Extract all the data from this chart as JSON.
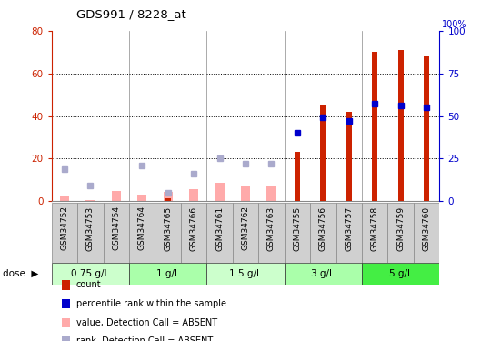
{
  "title": "GDS991 / 8228_at",
  "samples": [
    "GSM34752",
    "GSM34753",
    "GSM34754",
    "GSM34764",
    "GSM34765",
    "GSM34766",
    "GSM34761",
    "GSM34762",
    "GSM34763",
    "GSM34755",
    "GSM34756",
    "GSM34757",
    "GSM34758",
    "GSM34759",
    "GSM34760"
  ],
  "doses": [
    {
      "label": "0.75 g/L",
      "start": 0,
      "end": 3
    },
    {
      "label": "1 g/L",
      "start": 3,
      "end": 6
    },
    {
      "label": "1.5 g/L",
      "start": 6,
      "end": 9
    },
    {
      "label": "3 g/L",
      "start": 9,
      "end": 12
    },
    {
      "label": "5 g/L",
      "start": 12,
      "end": 15
    }
  ],
  "count": [
    0,
    0,
    0,
    0,
    1.5,
    0,
    0,
    0,
    0,
    23,
    45,
    42,
    70,
    71,
    68
  ],
  "percentile_rank": [
    null,
    null,
    null,
    null,
    null,
    null,
    null,
    null,
    null,
    40,
    49,
    47,
    57,
    56,
    55
  ],
  "value_absent": [
    2.5,
    0.5,
    5.0,
    3.0,
    4.5,
    5.5,
    8.5,
    7.5,
    7.5,
    null,
    null,
    null,
    null,
    null,
    null
  ],
  "rank_absent": [
    19,
    9,
    null,
    21,
    5,
    16,
    25,
    22,
    22,
    null,
    null,
    null,
    null,
    null,
    null
  ],
  "count_color": "#cc2200",
  "percentile_color": "#0000cc",
  "value_absent_color": "#ffaaaa",
  "rank_absent_color": "#aaaacc",
  "dose_colors": [
    "#ccffcc",
    "#aaffaa",
    "#ccffcc",
    "#aaffaa",
    "#44ee44"
  ],
  "ylim_left": [
    0,
    80
  ],
  "ylim_right": [
    0,
    100
  ],
  "yticks_left": [
    0,
    20,
    40,
    60,
    80
  ],
  "yticks_right": [
    0,
    25,
    50,
    75,
    100
  ],
  "bar_width": 0.35,
  "sample_bg_color": "#d0d0d0",
  "plot_bg_color": "#ffffff"
}
